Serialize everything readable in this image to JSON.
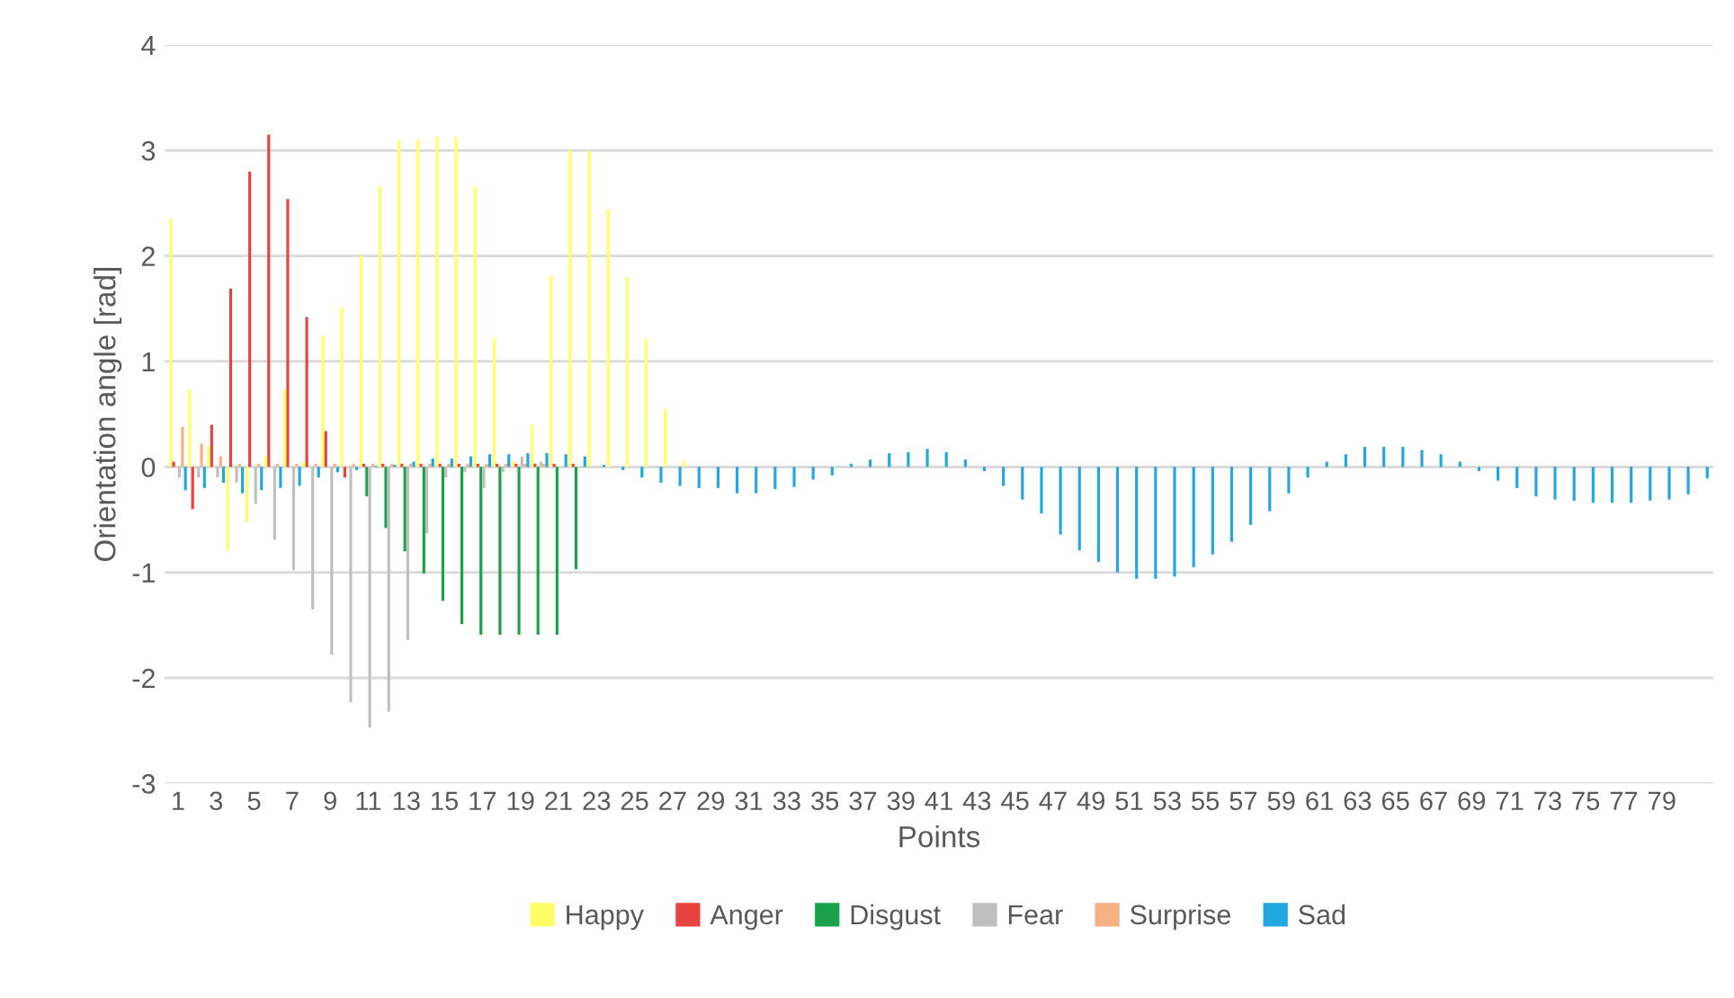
{
  "chart_data": {
    "type": "bar",
    "xlabel": "Points",
    "ylabel": "Orientation angle [rad]",
    "categories": [
      "1",
      null,
      "3",
      null,
      "5",
      null,
      "7",
      null,
      "9",
      null,
      "11",
      null,
      "13",
      null,
      "15",
      null,
      "17",
      null,
      "19",
      null,
      "21",
      null,
      "23",
      null,
      "25",
      null,
      "27",
      null,
      "29",
      null,
      "31",
      null,
      "33",
      null,
      "35",
      null,
      "37",
      null,
      "39",
      null,
      "41",
      null,
      "43",
      null,
      "45",
      null,
      "47",
      null,
      "49",
      null,
      "51",
      null,
      "53",
      null,
      "55",
      null,
      "57",
      null,
      "59",
      null,
      "61",
      null,
      "63",
      null,
      "65",
      null,
      "67",
      null,
      "69",
      null,
      "71",
      null,
      "73",
      null,
      "75",
      null,
      "77",
      null,
      "79",
      null,
      null
    ],
    "series": [
      {
        "name": "Happy",
        "color": "#ffff66",
        "values": [
          2.35,
          0.74,
          0.2,
          -0.79,
          -0.52,
          0.1,
          0.74,
          0.05,
          1.24,
          1.51,
          2.0,
          2.66,
          3.1,
          3.1,
          3.13,
          3.13,
          2.66,
          1.22,
          0.05,
          0.4,
          1.81,
          3.0,
          3.0,
          2.44,
          1.8,
          1.22,
          0.55,
          0.06,
          null,
          null,
          null,
          null,
          null,
          null,
          null,
          null,
          null,
          null,
          null,
          null,
          null,
          null,
          null,
          null,
          null,
          null,
          null,
          null,
          null,
          null,
          null,
          null,
          null,
          null,
          null,
          null,
          null,
          null,
          null,
          null,
          null,
          null,
          null,
          null,
          null,
          null,
          null,
          null,
          null,
          null,
          null,
          null,
          null,
          null,
          null,
          null,
          null,
          null,
          null,
          null,
          null
        ]
      },
      {
        "name": "Anger",
        "color": "#e8433e",
        "values": [
          0.05,
          -0.4,
          0.4,
          1.69,
          2.8,
          3.15,
          2.54,
          1.42,
          0.34,
          -0.1,
          0.03,
          0.03,
          0.03,
          0.03,
          0.03,
          0.03,
          0.03,
          0.03,
          0.03,
          0.03,
          0.03,
          0.03,
          null,
          null,
          null,
          null,
          null,
          null,
          null,
          null,
          null,
          null,
          null,
          null,
          null,
          null,
          null,
          null,
          null,
          null,
          null,
          null,
          null,
          null,
          null,
          null,
          null,
          null,
          null,
          null,
          null,
          null,
          null,
          null,
          null,
          null,
          null,
          null,
          null,
          null,
          null,
          null,
          null,
          null,
          null,
          null,
          null,
          null,
          null,
          null,
          null,
          null,
          null,
          null,
          null,
          null,
          null,
          null,
          null,
          null,
          null
        ]
      },
      {
        "name": "Disgust",
        "color": "#1aa24a",
        "values": [
          null,
          null,
          null,
          null,
          null,
          null,
          null,
          null,
          null,
          null,
          -0.28,
          -0.58,
          -0.8,
          -1.01,
          -1.27,
          -1.49,
          -1.59,
          -1.59,
          -1.59,
          -1.59,
          -1.59,
          -0.97,
          null,
          null,
          null,
          null,
          null,
          null,
          null,
          null,
          null,
          null,
          null,
          null,
          null,
          null,
          null,
          null,
          null,
          null,
          null,
          null,
          null,
          null,
          null,
          null,
          null,
          null,
          null,
          null,
          null,
          null,
          null,
          null,
          null,
          null,
          null,
          null,
          null,
          null,
          null,
          null,
          null,
          null,
          null,
          null,
          null,
          null,
          null,
          null,
          null,
          null,
          null,
          null,
          null,
          null,
          null,
          null,
          null,
          null,
          null
        ]
      },
      {
        "name": "Fear",
        "color": "#bfbfbf",
        "values": [
          -0.1,
          -0.1,
          -0.1,
          -0.15,
          -0.35,
          -0.69,
          -0.98,
          -1.35,
          -1.78,
          -2.23,
          -2.47,
          -2.32,
          -1.64,
          -0.63,
          -0.1,
          -0.05,
          -0.2,
          -0.05,
          0.1,
          0.05,
          null,
          null,
          null,
          null,
          null,
          null,
          null,
          null,
          null,
          null,
          null,
          null,
          null,
          null,
          null,
          null,
          null,
          null,
          null,
          null,
          null,
          null,
          null,
          null,
          null,
          null,
          null,
          null,
          null,
          null,
          null,
          null,
          null,
          null,
          null,
          null,
          null,
          null,
          null,
          null,
          null,
          null,
          null,
          null,
          null,
          null,
          null,
          null,
          null,
          null,
          null,
          null,
          null,
          null,
          null,
          null,
          null,
          null,
          null,
          null,
          null
        ]
      },
      {
        "name": "Surprise",
        "color": "#f4b183",
        "values": [
          0.38,
          0.22,
          0.1,
          0.03,
          0.03,
          0.03,
          0.03,
          0.03,
          0.03,
          0.03,
          0.03,
          0.03,
          0.03,
          0.03,
          0.03,
          0.03,
          0.03,
          0.03,
          0.03,
          0.03,
          null,
          null,
          null,
          null,
          null,
          null,
          null,
          null,
          null,
          null,
          null,
          null,
          null,
          null,
          null,
          null,
          null,
          null,
          null,
          null,
          null,
          null,
          null,
          null,
          null,
          null,
          null,
          null,
          null,
          null,
          null,
          null,
          null,
          null,
          null,
          null,
          null,
          null,
          null,
          null,
          null,
          null,
          null,
          null,
          null,
          null,
          null,
          null,
          null,
          null,
          null,
          null,
          null,
          null,
          null,
          null,
          null,
          null,
          null,
          null,
          null
        ]
      },
      {
        "name": "Sad",
        "color": "#22a7df",
        "values": [
          -0.22,
          -0.2,
          -0.15,
          -0.25,
          -0.22,
          -0.2,
          -0.18,
          -0.1,
          -0.05,
          -0.03,
          0.01,
          0.02,
          0.05,
          0.08,
          0.08,
          0.1,
          0.12,
          0.12,
          0.13,
          0.13,
          0.12,
          0.1,
          0.02,
          -0.03,
          -0.1,
          -0.15,
          -0.18,
          -0.2,
          -0.2,
          -0.25,
          -0.25,
          -0.21,
          -0.19,
          -0.12,
          -0.08,
          0.03,
          0.07,
          0.13,
          0.14,
          0.17,
          0.14,
          0.07,
          -0.04,
          -0.18,
          -0.31,
          -0.44,
          -0.64,
          -0.79,
          -0.9,
          -1.0,
          -1.06,
          -1.06,
          -1.04,
          -0.95,
          -0.83,
          -0.71,
          -0.55,
          -0.42,
          -0.25,
          -0.1,
          0.05,
          0.12,
          0.19,
          0.19,
          0.19,
          0.16,
          0.12,
          0.05,
          -0.04,
          -0.13,
          -0.2,
          -0.28,
          -0.31,
          -0.32,
          -0.34,
          -0.34,
          -0.34,
          -0.32,
          -0.31,
          -0.26,
          -0.11
        ]
      }
    ],
    "ylim": [
      -3,
      4
    ],
    "yticks": [
      -3,
      -2,
      -1,
      0,
      1,
      2,
      3,
      4
    ],
    "grid": "y",
    "legend": "bottom"
  }
}
